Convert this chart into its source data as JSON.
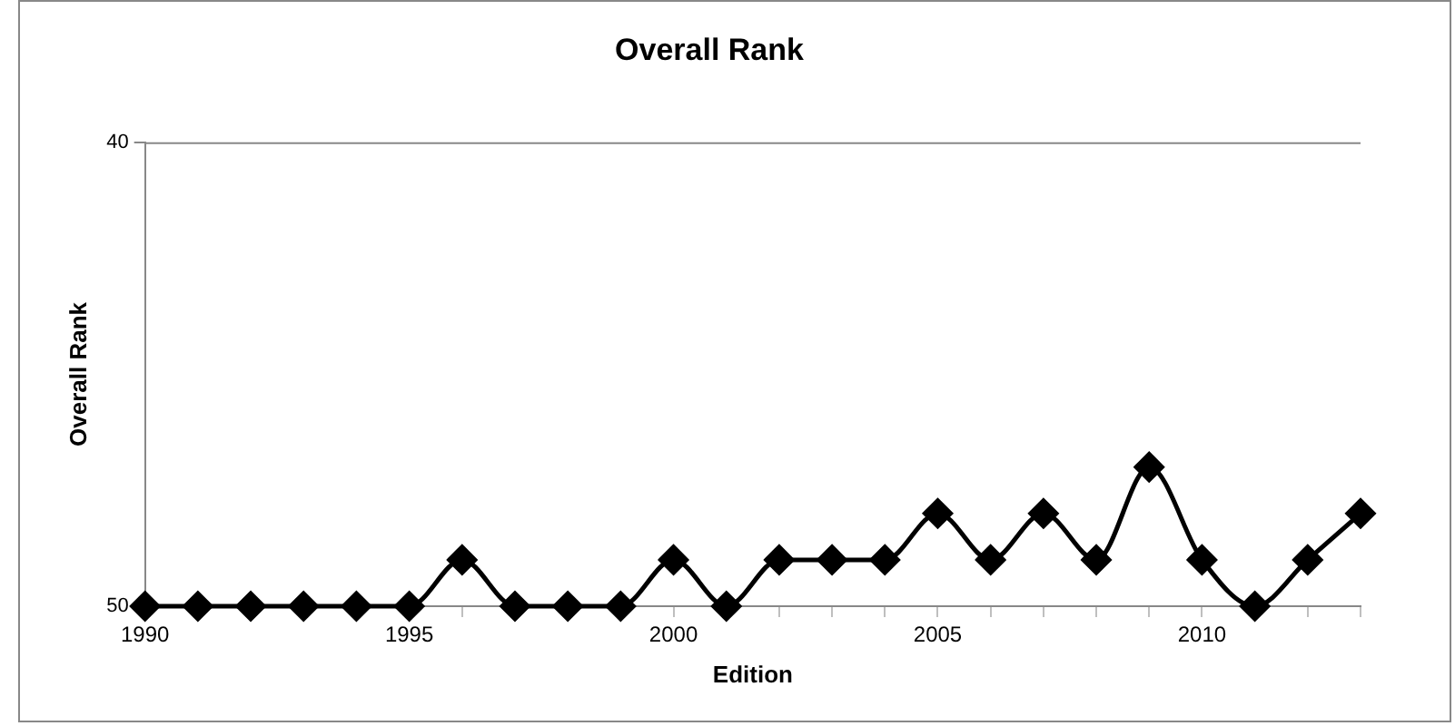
{
  "chart_data": {
    "type": "line",
    "title": "Overall Rank",
    "xlabel": "Edition",
    "ylabel": "Overall Rank",
    "x": [
      1990,
      1991,
      1992,
      1993,
      1994,
      1995,
      1996,
      1997,
      1998,
      1999,
      2000,
      2001,
      2002,
      2003,
      2004,
      2005,
      2006,
      2007,
      2008,
      2009,
      2010,
      2011,
      2012,
      2013
    ],
    "series": [
      {
        "color": "#000000",
        "values": [
          50,
          50,
          50,
          50,
          50,
          50,
          49,
          50,
          50,
          50,
          49,
          50,
          49,
          49,
          49,
          48,
          49,
          48,
          49,
          47,
          49,
          50,
          49,
          48
        ]
      }
    ],
    "xlim": [
      1990,
      2013
    ],
    "xticks": [
      1990,
      {
        "value": 1991,
        "label": null
      },
      {
        "value": 1992,
        "label": null
      },
      {
        "value": 1993,
        "label": null
      },
      {
        "value": 1994,
        "label": null
      },
      1995,
      {
        "value": 1996,
        "label": null
      },
      {
        "value": 1997,
        "label": null
      },
      {
        "value": 1998,
        "label": null
      },
      {
        "value": 1999,
        "label": null
      },
      2000,
      {
        "value": 2001,
        "label": null
      },
      {
        "value": 2002,
        "label": null
      },
      {
        "value": 2003,
        "label": null
      },
      {
        "value": 2004,
        "label": null
      },
      2005,
      {
        "value": 2006,
        "label": null
      },
      {
        "value": 2007,
        "label": null
      },
      {
        "value": 2008,
        "label": null
      },
      {
        "value": 2009,
        "label": null
      },
      2010,
      {
        "value": 2011,
        "label": null
      },
      {
        "value": 2012,
        "label": null
      },
      {
        "value": 2013,
        "label": null
      }
    ],
    "ylim": [
      50,
      40
    ],
    "yticks": [
      50,
      40
    ],
    "grid": false,
    "legend": false,
    "marker": "diamond",
    "line_style": "solid"
  }
}
